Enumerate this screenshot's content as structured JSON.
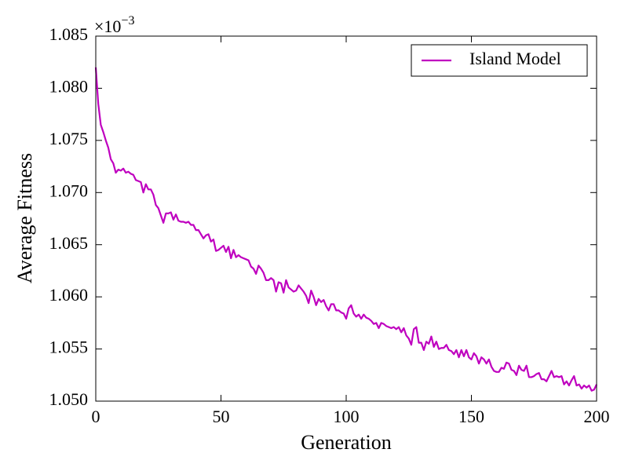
{
  "chart_data": {
    "type": "line",
    "xlabel": "Generation",
    "ylabel": "Average Fitness",
    "y_offset": {
      "base": "×10",
      "exponent": "−3"
    },
    "legend": "upper right",
    "xlim": [
      0,
      200
    ],
    "xticks": [
      0,
      50,
      100,
      150,
      200
    ],
    "ylim": [
      1.05,
      1.085
    ],
    "yticks": [
      {
        "value": 1.05,
        "label": "1.050"
      },
      {
        "value": 1.055,
        "label": "1.055"
      },
      {
        "value": 1.06,
        "label": "1.060"
      },
      {
        "value": 1.065,
        "label": "1.065"
      },
      {
        "value": 1.07,
        "label": "1.070"
      },
      {
        "value": 1.075,
        "label": "1.075"
      },
      {
        "value": 1.08,
        "label": "1.080"
      },
      {
        "value": 1.085,
        "label": "1.085"
      }
    ],
    "x": [
      0,
      1,
      2,
      3,
      4,
      5,
      6,
      7,
      8,
      9,
      10,
      11,
      12,
      13,
      14,
      15,
      16,
      17,
      18,
      19,
      20,
      21,
      22,
      23,
      24,
      25,
      26,
      27,
      28,
      29,
      30,
      31,
      32,
      33,
      34,
      35,
      36,
      37,
      38,
      39,
      40,
      41,
      42,
      43,
      44,
      45,
      46,
      47,
      48,
      49,
      50,
      51,
      52,
      53,
      54,
      55,
      56,
      57,
      58,
      59,
      60,
      61,
      62,
      63,
      64,
      65,
      66,
      67,
      68,
      69,
      70,
      71,
      72,
      73,
      74,
      75,
      76,
      77,
      78,
      79,
      80,
      81,
      82,
      83,
      84,
      85,
      86,
      87,
      88,
      89,
      90,
      91,
      92,
      93,
      94,
      95,
      96,
      97,
      98,
      99,
      100,
      101,
      102,
      103,
      104,
      105,
      106,
      107,
      108,
      109,
      110,
      111,
      112,
      113,
      114,
      115,
      116,
      117,
      118,
      119,
      120,
      121,
      122,
      123,
      124,
      125,
      126,
      127,
      128,
      129,
      130,
      131,
      132,
      133,
      134,
      135,
      136,
      137,
      138,
      139,
      140,
      141,
      142,
      143,
      144,
      145,
      146,
      147,
      148,
      149,
      150,
      151,
      152,
      153,
      154,
      155,
      156,
      157,
      158,
      159,
      160,
      161,
      162,
      163,
      164,
      165,
      166,
      167,
      168,
      169,
      170,
      171,
      172,
      173,
      174,
      175,
      176,
      177,
      178,
      179,
      180,
      181,
      182,
      183,
      184,
      185,
      186,
      187,
      188,
      189,
      190,
      191,
      192,
      193,
      194,
      195,
      196,
      197,
      198,
      199,
      200
    ],
    "series": [
      {
        "name": "Island Model",
        "color": "#bf00bf",
        "values": [
          1.082,
          1.0785,
          1.0765,
          1.0758,
          1.075,
          1.0743,
          1.0732,
          1.0728,
          1.0719,
          1.0722,
          1.0721,
          1.0723,
          1.0719,
          1.072,
          1.0718,
          1.0717,
          1.0712,
          1.0711,
          1.071,
          1.07,
          1.0708,
          1.0703,
          1.0703,
          1.0698,
          1.0688,
          1.0685,
          1.0678,
          1.0671,
          1.068,
          1.068,
          1.0681,
          1.0674,
          1.0679,
          1.0673,
          1.0672,
          1.0672,
          1.0671,
          1.0672,
          1.0669,
          1.0669,
          1.0664,
          1.0664,
          1.066,
          1.0656,
          1.0659,
          1.066,
          1.0653,
          1.0655,
          1.0644,
          1.0645,
          1.0647,
          1.0649,
          1.0643,
          1.0648,
          1.0637,
          1.0645,
          1.0638,
          1.064,
          1.0638,
          1.0637,
          1.0636,
          1.0635,
          1.0629,
          1.0627,
          1.0622,
          1.063,
          1.0627,
          1.0623,
          1.0616,
          1.0616,
          1.0618,
          1.0616,
          1.0605,
          1.0614,
          1.0613,
          1.0604,
          1.0616,
          1.0609,
          1.0607,
          1.0605,
          1.0606,
          1.0611,
          1.0608,
          1.0605,
          1.0601,
          1.0594,
          1.0606,
          1.06,
          1.0592,
          1.0598,
          1.0595,
          1.0597,
          1.0591,
          1.0587,
          1.0593,
          1.0593,
          1.0587,
          1.0587,
          1.0585,
          1.0584,
          1.0579,
          1.0589,
          1.0592,
          1.0584,
          1.0581,
          1.0583,
          1.0579,
          1.0583,
          1.058,
          1.0579,
          1.0577,
          1.0574,
          1.0575,
          1.057,
          1.0575,
          1.0574,
          1.0572,
          1.0571,
          1.057,
          1.0571,
          1.0569,
          1.0571,
          1.0566,
          1.057,
          1.0563,
          1.056,
          1.0554,
          1.0569,
          1.0571,
          1.0556,
          1.0556,
          1.0549,
          1.0557,
          1.0555,
          1.0562,
          1.0552,
          1.0557,
          1.055,
          1.0551,
          1.0551,
          1.0554,
          1.0549,
          1.0548,
          1.0545,
          1.0549,
          1.0542,
          1.0549,
          1.0543,
          1.0549,
          1.0542,
          1.054,
          1.0546,
          1.0543,
          1.0536,
          1.0542,
          1.054,
          1.0536,
          1.054,
          1.0533,
          1.0529,
          1.0528,
          1.0528,
          1.0532,
          1.0531,
          1.0537,
          1.0536,
          1.053,
          1.0529,
          1.0525,
          1.0534,
          1.053,
          1.0529,
          1.0534,
          1.0523,
          1.0523,
          1.0524,
          1.0526,
          1.0527,
          1.0521,
          1.0521,
          1.0519,
          1.0524,
          1.0529,
          1.0523,
          1.0524,
          1.0523,
          1.0524,
          1.0516,
          1.0519,
          1.0515,
          1.052,
          1.0524,
          1.0515,
          1.0516,
          1.0512,
          1.0515,
          1.0513,
          1.0515,
          1.051,
          1.0511,
          1.0516
        ]
      }
    ]
  }
}
